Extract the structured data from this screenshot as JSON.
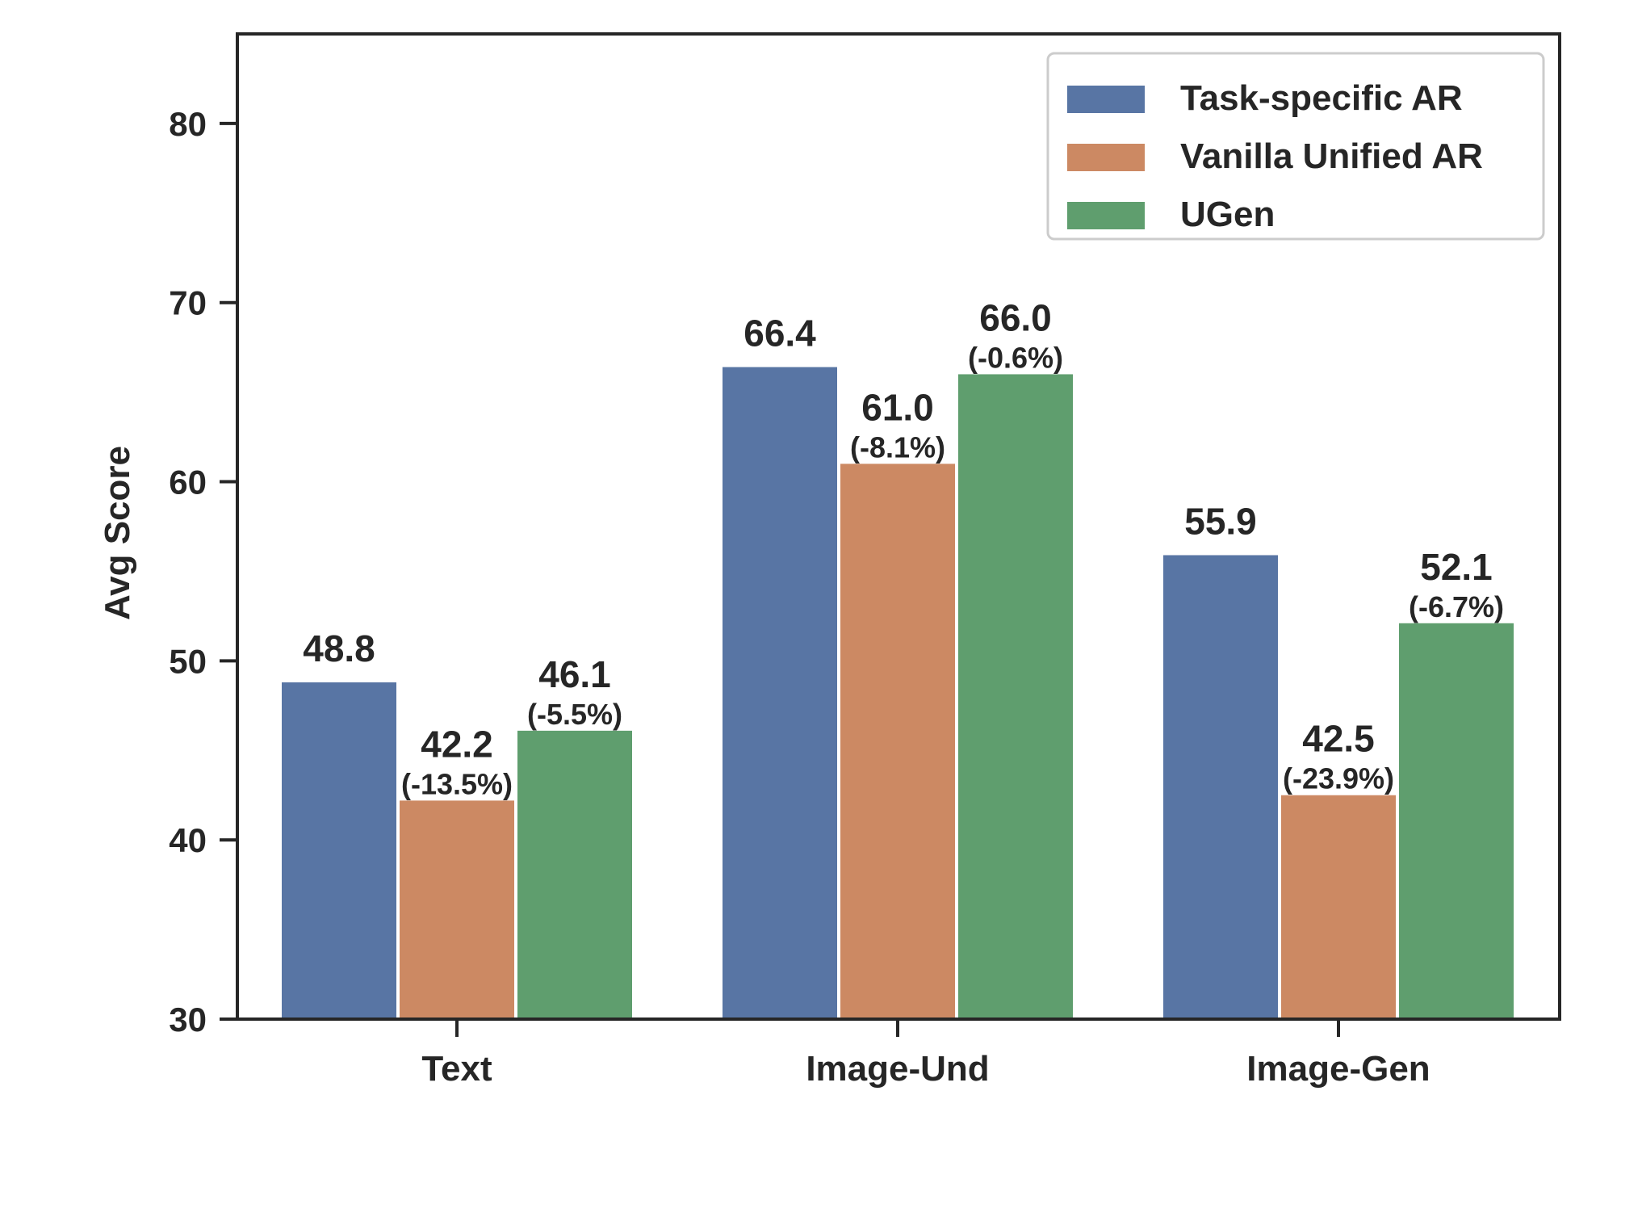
{
  "chart_data": {
    "type": "bar",
    "title": "",
    "xlabel": "",
    "ylabel": "Avg Score",
    "ylim": [
      30,
      85
    ],
    "yticks": [
      30,
      40,
      50,
      60,
      70,
      80
    ],
    "grid": false,
    "legend_position": "top-right",
    "categories": [
      "Text",
      "Image-Und",
      "Image-Gen"
    ],
    "series": [
      {
        "name": "Task-specific AR",
        "color": "#5875a4",
        "values": [
          48.8,
          66.4,
          55.9
        ],
        "value_labels": [
          "48.8",
          "66.4",
          "55.9"
        ],
        "pct_labels": [
          "",
          "",
          ""
        ]
      },
      {
        "name": "Vanilla Unified AR",
        "color": "#cc8963",
        "values": [
          42.2,
          61.0,
          42.5
        ],
        "value_labels": [
          "42.2",
          "61.0",
          "42.5"
        ],
        "pct_labels": [
          "(-13.5%)",
          "(-8.1%)",
          "(-23.9%)"
        ]
      },
      {
        "name": "UGen",
        "color": "#5f9e6e",
        "values": [
          46.1,
          66.0,
          52.1
        ],
        "value_labels": [
          "46.1",
          "66.0",
          "52.1"
        ],
        "pct_labels": [
          "(-5.5%)",
          "(-0.6%)",
          "(-6.7%)"
        ]
      }
    ]
  }
}
